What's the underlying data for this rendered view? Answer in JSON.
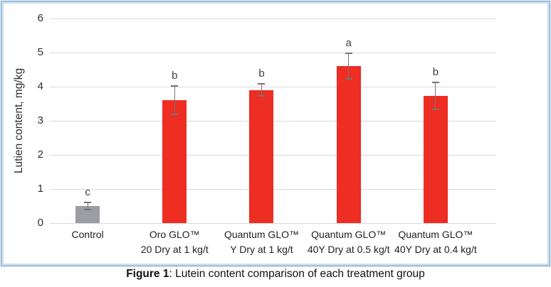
{
  "figure": {
    "caption_prefix": "Figure 1",
    "caption_rest": ": Lutein content comparison of each treatment group"
  },
  "chart_data": {
    "type": "bar",
    "title": "",
    "xlabel": "",
    "ylabel": "Lutien content, mg/kg",
    "ylim": [
      0,
      6
    ],
    "yticks": [
      0,
      1,
      2,
      3,
      4,
      5,
      6
    ],
    "grid": true,
    "legend": false,
    "categories": [
      [
        "Control"
      ],
      [
        "Oro GLO™",
        "20 Dry at 1 kg/t"
      ],
      [
        "Quantum GLO™",
        "Y Dry at 1 kg/t"
      ],
      [
        "Quantum GLO™",
        "40Y Dry at 0.5 kg/t"
      ],
      [
        "Quantum GLO™",
        "40Y Dry at 0.4 kg/t"
      ]
    ],
    "values": [
      0.5,
      3.6,
      3.9,
      4.6,
      3.73
    ],
    "errors": [
      0.1,
      0.42,
      0.18,
      0.38,
      0.4
    ],
    "sig_letters": [
      "c",
      "b",
      "b",
      "a",
      "b"
    ],
    "bar_colors": [
      "#9A9DA1",
      "#EE2D23",
      "#EE2D23",
      "#EE2D23",
      "#EE2D23"
    ],
    "colors": {
      "treatment_red": "#EE2D23",
      "control_gray": "#9A9DA1",
      "gridline": "#D9D9D9",
      "error_bar": "#757575",
      "frame_border": "#6898C2"
    }
  }
}
